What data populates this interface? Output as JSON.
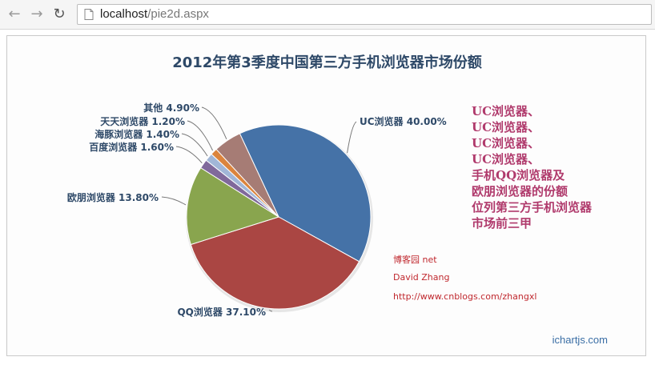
{
  "browser": {
    "url_host": "localhost",
    "url_path": "/pie2d.aspx"
  },
  "chart_data": {
    "type": "pie",
    "title": "2012年第3季度中国第三方手机浏览器市场份额",
    "slices": [
      {
        "label": "UC浏览器",
        "value": 40.0,
        "display": "UC浏览器 40.00%",
        "color": "#4572a7"
      },
      {
        "label": "QQ浏览器",
        "value": 37.1,
        "display": "QQ浏览器 37.10%",
        "color": "#aa4643"
      },
      {
        "label": "欧朋浏览器",
        "value": 13.8,
        "display": "欧朋浏览器 13.80%",
        "color": "#89a54e"
      },
      {
        "label": "百度浏览器",
        "value": 1.6,
        "display": "百度浏览器 1.60%",
        "color": "#80699b"
      },
      {
        "label": "海豚浏览器",
        "value": 1.4,
        "display": "海豚浏览器 1.40%",
        "color": "#a1b6d7"
      },
      {
        "label": "天天浏览器",
        "value": 1.2,
        "display": "天天浏览器 1.20%",
        "color": "#db843d"
      },
      {
        "label": "其他",
        "value": 4.9,
        "display": "其他 4.90%",
        "color": "#a67c75"
      }
    ]
  },
  "annotation": {
    "lines": [
      "UC浏览器、",
      "UC浏览器、",
      "UC浏览器、",
      "UC浏览器、",
      "手机QQ浏览器及",
      "欧朋浏览器的份额",
      "位列第三方手机浏览器",
      "市场前三甲"
    ]
  },
  "credits": {
    "line1": "博客园 net",
    "line2": "David Zhang",
    "line3": "http://www.cnblogs.com/zhangxl"
  },
  "watermark": "ichartjs.com"
}
